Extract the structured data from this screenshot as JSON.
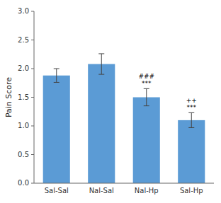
{
  "chart_data": {
    "type": "bar",
    "ylabel": "Pain Score",
    "categories": [
      "Sal-Sal",
      "Nal-Sal",
      "Nal-Hp",
      "Sal-Hp"
    ],
    "values": [
      1.88,
      2.08,
      1.5,
      1.1
    ],
    "errors": [
      0.12,
      0.18,
      0.15,
      0.13
    ],
    "color": "#5B9BD5",
    "ylim": [
      0,
      3
    ],
    "yticks": [
      {
        "value": 0,
        "label": "0.0"
      },
      0.5,
      {
        "value": 1,
        "label": "1.0"
      },
      1.5,
      {
        "value": 2,
        "label": "2.0"
      },
      2.5,
      {
        "value": 3,
        "label": "3.0"
      }
    ],
    "annotations": [
      {
        "text": "###",
        "category": "Nal-Hp"
      },
      {
        "text": "***",
        "category": "Nal-Hp"
      },
      {
        "text": "++",
        "category": "Sal-Hp"
      },
      {
        "text": "***",
        "category": "Sal-Hp"
      }
    ]
  }
}
